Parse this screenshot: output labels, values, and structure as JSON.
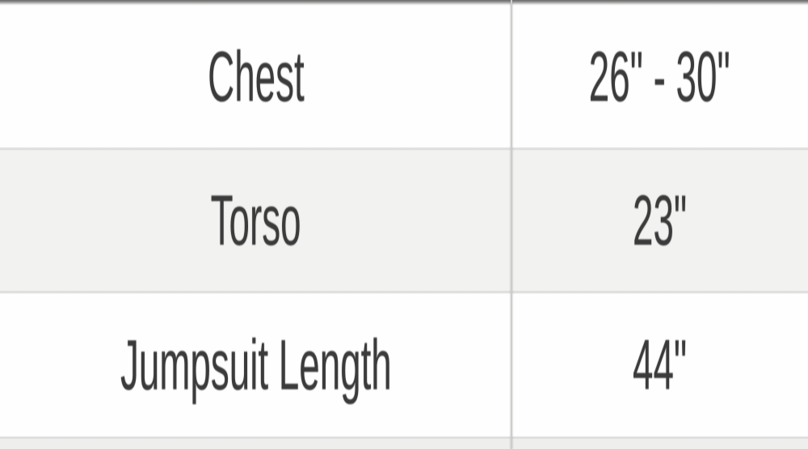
{
  "chart_data": {
    "type": "table",
    "rows": [
      {
        "label": "Chest",
        "value": "26\" - 30\""
      },
      {
        "label": "Torso",
        "value": "23\""
      },
      {
        "label": "Jumpsuit Length",
        "value": "44\""
      }
    ]
  },
  "colors": {
    "text": "#3b3b3b",
    "row_bg": "#fefefe",
    "alt_row_bg": "#f2f2f0",
    "partial_row_bg": "#eeeeec",
    "row_divider": "#d7d7d5",
    "column_divider": "#cdcdcb",
    "top_edge": "#686868"
  }
}
